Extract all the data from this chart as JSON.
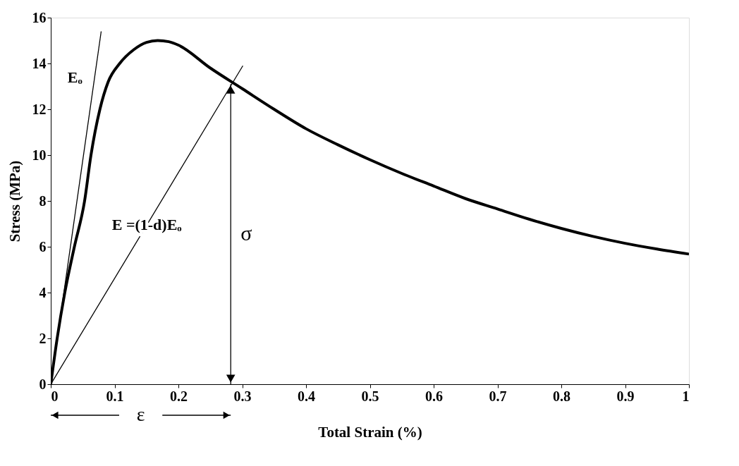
{
  "chart_data": {
    "type": "line",
    "xlabel": "Total Strain (%)",
    "ylabel": "Stress (MPa)",
    "xlim": [
      0,
      1
    ],
    "ylim": [
      0,
      16
    ],
    "xticks": [
      0,
      0.1,
      0.2,
      0.3,
      0.4,
      0.5,
      0.6,
      0.7,
      0.8,
      0.9,
      1
    ],
    "yticks": [
      0,
      2,
      4,
      6,
      8,
      10,
      12,
      14,
      16
    ],
    "grid": false,
    "marker": "none",
    "line_style": "solid",
    "series": [
      {
        "color": "#000000",
        "x": [
          0,
          0.01,
          0.022,
          0.037,
          0.053,
          0.063,
          0.077,
          0.09,
          0.108,
          0.13,
          0.15,
          0.1675,
          0.185,
          0.2,
          0.25,
          0.3,
          0.35,
          0.4,
          0.45,
          0.5,
          0.55,
          0.6,
          0.65,
          0.7,
          0.75,
          0.8,
          0.85,
          0.9,
          0.95,
          1.0
        ],
        "values": [
          0,
          2,
          4,
          6,
          8,
          10,
          12,
          13.2,
          14.0,
          14.6,
          14.92,
          15.0,
          14.95,
          14.8,
          13.8,
          12.9,
          12.0,
          11.15,
          10.45,
          9.8,
          9.2,
          8.65,
          8.1,
          7.65,
          7.2,
          6.8,
          6.45,
          6.15,
          5.9,
          5.68
        ]
      },
      {
        "color": "#000000",
        "x": [
          0,
          0.079
        ],
        "values": [
          0,
          15.4
        ]
      },
      {
        "color": "#000000",
        "x": [
          0,
          0.301
        ],
        "values": [
          0,
          13.9
        ]
      },
      {
        "color": "#000000",
        "x": [
          0.282,
          0.282
        ],
        "values": [
          0,
          13.1
        ]
      }
    ],
    "annotations": [
      "Eₒ",
      "E =(1-d)Eₒ",
      "σ",
      "ε"
    ]
  }
}
